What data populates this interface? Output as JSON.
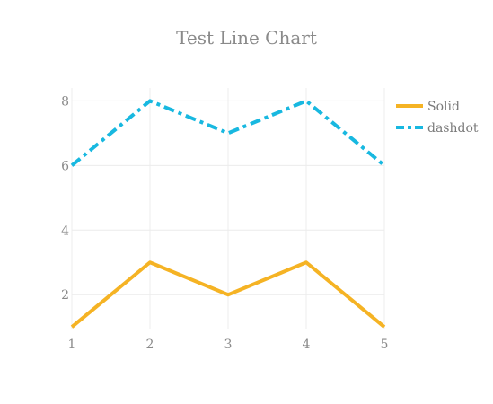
{
  "chart_data": {
    "type": "line",
    "title": "Test Line Chart",
    "x": [
      1,
      2,
      3,
      4,
      5
    ],
    "xlim": [
      1,
      5
    ],
    "ylim": [
      0.95,
      8.4
    ],
    "x_ticks": [
      1,
      2,
      3,
      4,
      5
    ],
    "y_ticks": [
      2,
      4,
      6,
      8
    ],
    "grid": true,
    "legend_position": "top-right",
    "series": [
      {
        "name": "Solid",
        "values": [
          1,
          3,
          2,
          3,
          1
        ],
        "color": "#f5b324",
        "dash": "solid"
      },
      {
        "name": "dashdot",
        "values": [
          6,
          8,
          7,
          8,
          6
        ],
        "color": "#18b8e0",
        "dash": "dashdot"
      }
    ]
  }
}
